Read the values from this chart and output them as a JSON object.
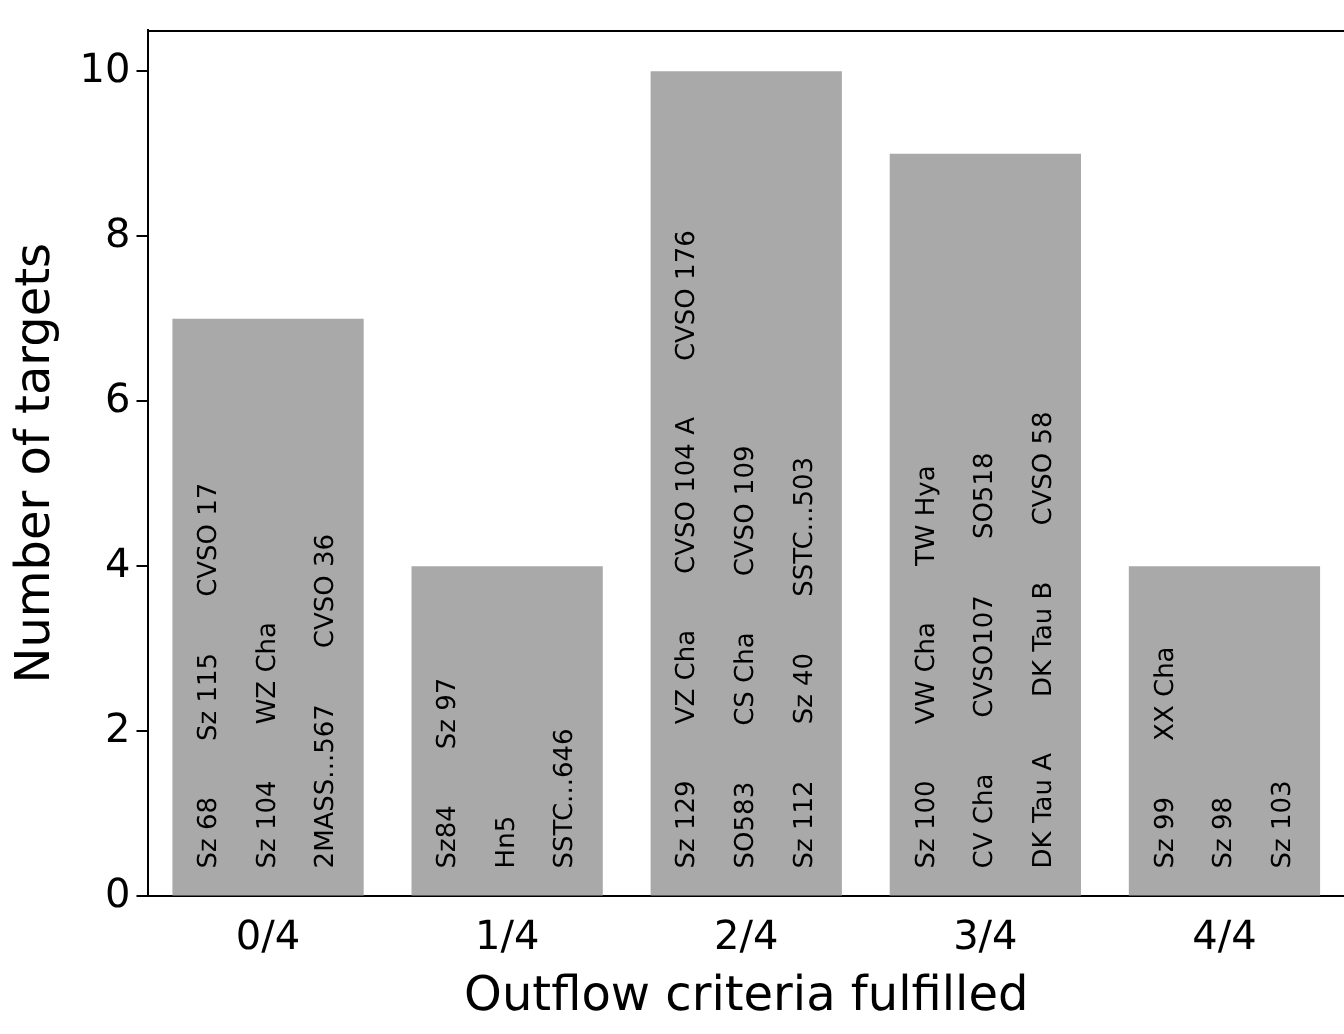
{
  "chart_data": {
    "type": "bar",
    "xlabel": "Outflow criteria fulfilled",
    "ylabel": "Number of targets",
    "categories": [
      "0/4",
      "1/4",
      "2/4",
      "3/4",
      "4/4"
    ],
    "values": [
      7,
      4,
      10,
      9,
      4
    ],
    "color": "#a9a9a9",
    "ylim": [
      0,
      10.5
    ],
    "yticks": [
      0,
      2,
      4,
      6,
      8,
      10
    ],
    "grid": false,
    "legend": false,
    "annotations": [
      "Sz 68",
      "Sz 104",
      "2MASS...567",
      "Sz 115",
      "WZ Cha",
      "CVSO 36",
      "CVSO 17",
      "Sz84",
      "Hn5",
      "SSTC...646",
      "Sz 97",
      "Sz 129",
      "SO583",
      "Sz 112",
      "VZ Cha",
      "CS Cha",
      "Sz 40",
      "CVSO 104 A",
      "CVSO 109",
      "SSTC...503",
      "CVSO 176",
      "Sz 100",
      "CV Cha",
      "DK Tau A",
      "VW Cha",
      "CVSO107",
      "DK Tau B",
      "TW Hya",
      "SO518",
      "CVSO 58",
      "Sz 99",
      "Sz 98",
      "Sz 103",
      "XX Cha"
    ]
  }
}
